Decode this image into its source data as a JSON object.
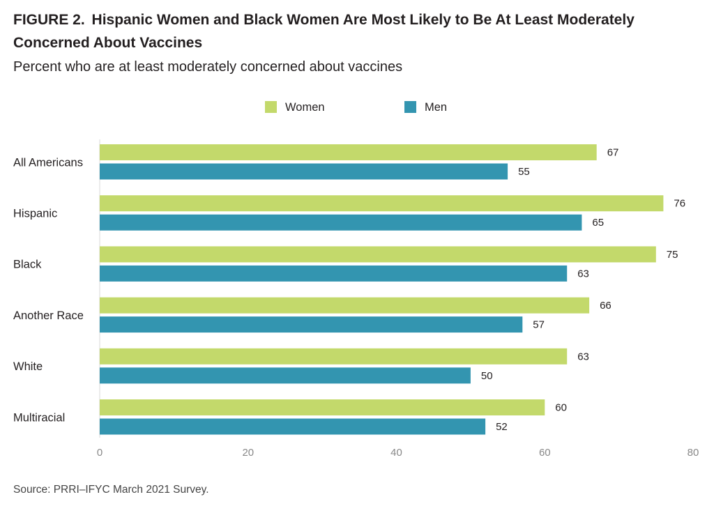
{
  "figure": {
    "label": "FIGURE 2.",
    "title": "Hispanic Women and Black Women Are Most Likely to Be At Least Moderately Concerned About Vaccines",
    "subtitle": "Percent who are at least moderately concerned about vaccines",
    "source": "Source: PRRI–IFYC March 2021 Survey."
  },
  "chart_data": {
    "type": "bar",
    "orientation": "horizontal",
    "categories": [
      "All Americans",
      "Hispanic",
      "Black",
      "Another Race",
      "White",
      "Multiracial"
    ],
    "series": [
      {
        "name": "Women",
        "color": "#c3d96b",
        "values": [
          67,
          76,
          75,
          66,
          63,
          60
        ]
      },
      {
        "name": "Men",
        "color": "#3395b0",
        "values": [
          55,
          65,
          63,
          57,
          50,
          52
        ]
      }
    ],
    "xlim": [
      0,
      80
    ],
    "xticks": [
      0,
      20,
      40,
      60,
      80
    ],
    "grid": false,
    "legend": "top-center",
    "data_labels": true
  }
}
